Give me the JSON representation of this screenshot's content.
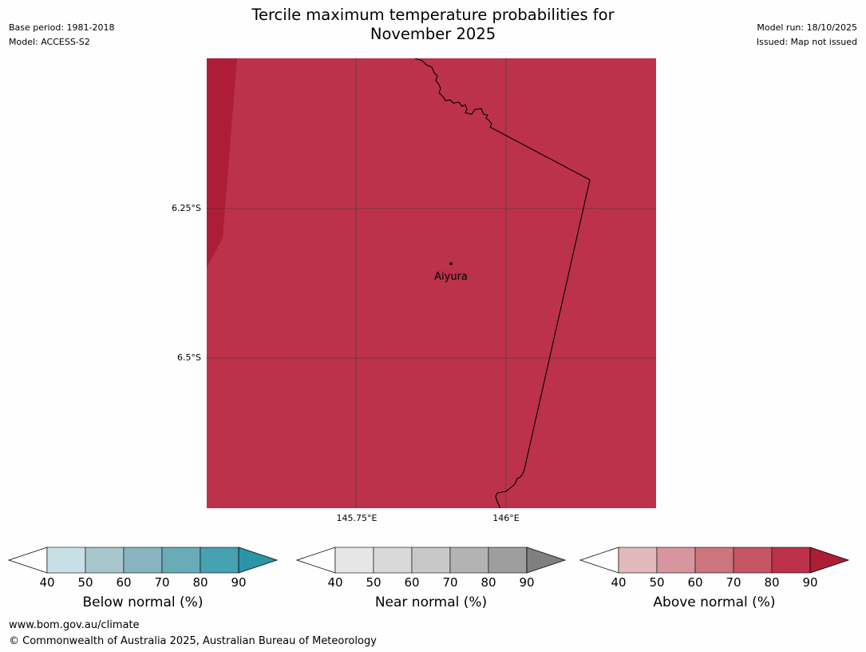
{
  "header": {
    "title_line1": "Tercile maximum temperature probabilities for",
    "title_line2": "November 2025",
    "base_period": "Base period: 1981-2018",
    "model": "Model: ACCESS-S2",
    "model_run": "Model run: 18/10/2025",
    "issued": "Issued: Map not issued"
  },
  "map": {
    "place_label": "Aiyura",
    "latitude_labels": [
      "6.25°S",
      "6.5°S"
    ],
    "longitude_labels": [
      "145.75°E",
      "146°E"
    ],
    "fill_colors": {
      "above_80_90": "#bb324a",
      "above_90_plus": "#ae1d38"
    },
    "border_color": "#000000"
  },
  "legends": [
    {
      "name": "below",
      "title": "Below normal (%)",
      "ticks": [
        "40",
        "50",
        "60",
        "70",
        "80",
        "90"
      ],
      "colors": [
        "#ffffff",
        "#c8e0e5",
        "#a6c6cc",
        "#88b4c2",
        "#6aabb8",
        "#46a1b0",
        "#2a95a7"
      ]
    },
    {
      "name": "near",
      "title": "Near normal (%)",
      "ticks": [
        "40",
        "50",
        "60",
        "70",
        "80",
        "90"
      ],
      "colors": [
        "#ffffff",
        "#e6e6e6",
        "#d9d9d9",
        "#c8c8c8",
        "#b3b3b3",
        "#9e9e9e",
        "#808080"
      ]
    },
    {
      "name": "above",
      "title": "Above normal (%)",
      "ticks": [
        "40",
        "50",
        "60",
        "70",
        "80",
        "90"
      ],
      "colors": [
        "#ffffff",
        "#e1b9bd",
        "#d7969d",
        "#cd757e",
        "#c45664",
        "#bb324a",
        "#ae1d38"
      ]
    }
  ],
  "footer": {
    "website": "www.bom.gov.au/climate",
    "copyright": "© Commonwealth of Australia 2025, Australian Bureau of Meteorology"
  }
}
